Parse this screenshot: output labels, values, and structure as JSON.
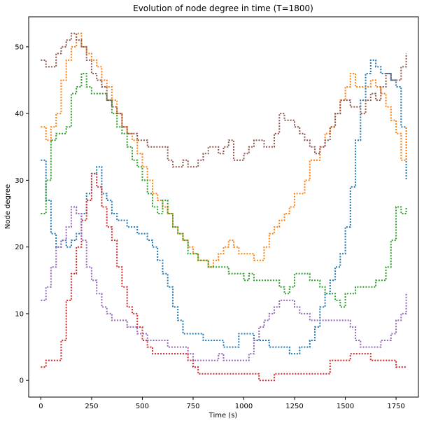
{
  "chart_data": {
    "type": "line",
    "title": "Evolution of node degree in time (T=1800)",
    "xlabel": "Time (s)",
    "ylabel": "Node degree",
    "xlim": [
      -60,
      1860
    ],
    "ylim": [
      -2.5,
      54.5
    ],
    "xticks": [
      0,
      250,
      500,
      750,
      1000,
      1250,
      1500,
      1750
    ],
    "yticks": [
      0,
      10,
      20,
      30,
      40,
      50
    ],
    "grid": false,
    "legend": "none",
    "series": [
      {
        "color": "#1f77b4",
        "x": [
          0,
          25,
          50,
          75,
          100,
          125,
          150,
          175,
          200,
          225,
          250,
          275,
          300,
          325,
          350,
          375,
          400,
          425,
          450,
          475,
          500,
          525,
          550,
          575,
          600,
          625,
          650,
          675,
          700,
          725,
          750,
          775,
          800,
          825,
          850,
          875,
          900,
          925,
          950,
          975,
          1000,
          1025,
          1050,
          1075,
          1100,
          1125,
          1150,
          1175,
          1200,
          1225,
          1250,
          1275,
          1300,
          1325,
          1350,
          1375,
          1400,
          1425,
          1450,
          1475,
          1500,
          1525,
          1550,
          1575,
          1600,
          1625,
          1650,
          1675,
          1700,
          1725,
          1750,
          1775,
          1800
        ],
        "y": [
          33,
          27,
          22,
          20,
          21,
          20,
          21,
          22,
          25,
          28,
          31,
          32,
          28,
          27,
          25,
          24,
          24,
          23,
          23,
          22,
          22,
          21,
          20,
          18,
          16,
          14,
          11,
          9,
          7,
          7,
          7,
          7,
          6,
          6,
          6,
          6,
          5,
          5,
          5,
          7,
          7,
          7,
          6,
          6,
          6,
          5,
          5,
          5,
          5,
          4,
          4,
          5,
          5,
          6,
          8,
          11,
          13,
          15,
          17,
          19,
          23,
          29,
          36,
          42,
          46,
          48,
          47,
          46,
          46,
          45,
          44,
          38,
          30
        ]
      },
      {
        "color": "#ff7f0e",
        "x": [
          0,
          25,
          50,
          75,
          100,
          125,
          150,
          175,
          200,
          225,
          250,
          275,
          300,
          325,
          350,
          375,
          400,
          425,
          450,
          475,
          500,
          525,
          550,
          575,
          600,
          625,
          650,
          675,
          700,
          725,
          750,
          775,
          800,
          825,
          850,
          875,
          900,
          925,
          950,
          975,
          1000,
          1025,
          1050,
          1075,
          1100,
          1125,
          1150,
          1175,
          1200,
          1225,
          1250,
          1275,
          1300,
          1325,
          1350,
          1375,
          1400,
          1425,
          1450,
          1475,
          1500,
          1525,
          1550,
          1575,
          1600,
          1625,
          1650,
          1675,
          1700,
          1725,
          1750,
          1775,
          1800
        ],
        "y": [
          38,
          36,
          38,
          40,
          45,
          48,
          50,
          52,
          50,
          49,
          48,
          47,
          45,
          44,
          42,
          40,
          38,
          37,
          36,
          34,
          32,
          30,
          28,
          27,
          26,
          25,
          23,
          22,
          21,
          20,
          19,
          18,
          18,
          17,
          18,
          19,
          20,
          21,
          20,
          19,
          19,
          19,
          18,
          18,
          20,
          22,
          23,
          24,
          25,
          26,
          28,
          28,
          30,
          33,
          33,
          35,
          37,
          38,
          40,
          42,
          44,
          46,
          44,
          44,
          44,
          45,
          44,
          43,
          41,
          39,
          37,
          33,
          38
        ]
      },
      {
        "color": "#2ca02c",
        "x": [
          0,
          25,
          50,
          75,
          100,
          125,
          150,
          175,
          200,
          225,
          250,
          275,
          300,
          325,
          350,
          375,
          400,
          425,
          450,
          475,
          500,
          525,
          550,
          575,
          600,
          625,
          650,
          675,
          700,
          725,
          750,
          775,
          800,
          825,
          850,
          875,
          900,
          925,
          950,
          975,
          1000,
          1025,
          1050,
          1075,
          1100,
          1125,
          1150,
          1175,
          1200,
          1225,
          1250,
          1275,
          1300,
          1325,
          1350,
          1375,
          1400,
          1425,
          1450,
          1475,
          1500,
          1525,
          1550,
          1575,
          1600,
          1625,
          1650,
          1675,
          1700,
          1725,
          1750,
          1775,
          1800
        ],
        "y": [
          25,
          30,
          36,
          37,
          37,
          38,
          43,
          44,
          46,
          44,
          43,
          43,
          43,
          42,
          40,
          38,
          37,
          35,
          33,
          32,
          30,
          28,
          26,
          25,
          27,
          25,
          23,
          22,
          21,
          19,
          19,
          18,
          18,
          17,
          17,
          17,
          17,
          16,
          16,
          16,
          15,
          16,
          15,
          15,
          15,
          15,
          15,
          14,
          13,
          14,
          16,
          16,
          16,
          15,
          15,
          14,
          13,
          13,
          12,
          11,
          13,
          13,
          14,
          14,
          14,
          14,
          15,
          15,
          17,
          21,
          26,
          25,
          26
        ]
      },
      {
        "color": "#d62728",
        "x": [
          0,
          25,
          50,
          75,
          100,
          125,
          150,
          175,
          200,
          225,
          250,
          275,
          300,
          325,
          350,
          375,
          400,
          425,
          450,
          475,
          500,
          525,
          550,
          575,
          600,
          625,
          650,
          675,
          700,
          725,
          750,
          775,
          800,
          825,
          850,
          875,
          900,
          925,
          950,
          975,
          1000,
          1025,
          1050,
          1075,
          1100,
          1125,
          1150,
          1175,
          1200,
          1225,
          1250,
          1275,
          1300,
          1325,
          1350,
          1375,
          1400,
          1425,
          1450,
          1475,
          1500,
          1525,
          1550,
          1575,
          1600,
          1625,
          1650,
          1675,
          1700,
          1725,
          1750,
          1775,
          1800
        ],
        "y": [
          2,
          3,
          3,
          3,
          6,
          12,
          16,
          20,
          24,
          27,
          31,
          29,
          26,
          23,
          21,
          17,
          14,
          11,
          10,
          8,
          6,
          5,
          4,
          4,
          4,
          4,
          4,
          4,
          4,
          3,
          2,
          1,
          1,
          1,
          1,
          1,
          1,
          1,
          1,
          1,
          1,
          1,
          1,
          0,
          0,
          0,
          1,
          1,
          1,
          1,
          1,
          1,
          1,
          1,
          1,
          1,
          1,
          3,
          3,
          3,
          3,
          4,
          4,
          4,
          4,
          3,
          3,
          3,
          3,
          3,
          2,
          2,
          2
        ]
      },
      {
        "color": "#9467bd",
        "x": [
          0,
          25,
          50,
          75,
          100,
          125,
          150,
          175,
          200,
          225,
          250,
          275,
          300,
          325,
          350,
          375,
          400,
          425,
          450,
          475,
          500,
          525,
          550,
          575,
          600,
          625,
          650,
          675,
          700,
          725,
          750,
          775,
          800,
          825,
          850,
          875,
          900,
          925,
          950,
          975,
          1000,
          1025,
          1050,
          1075,
          1100,
          1125,
          1150,
          1175,
          1200,
          1225,
          1250,
          1275,
          1300,
          1325,
          1350,
          1375,
          1400,
          1425,
          1450,
          1475,
          1500,
          1525,
          1550,
          1575,
          1600,
          1625,
          1650,
          1675,
          1700,
          1725,
          1750,
          1775,
          1800
        ],
        "y": [
          12,
          14,
          17,
          20,
          21,
          23,
          26,
          25,
          21,
          17,
          15,
          13,
          11,
          10,
          9,
          9,
          9,
          8,
          8,
          7,
          7,
          6,
          6,
          6,
          6,
          5,
          5,
          5,
          5,
          4,
          3,
          3,
          3,
          3,
          3,
          4,
          3,
          3,
          3,
          3,
          3,
          4,
          6,
          8,
          9,
          10,
          11,
          12,
          12,
          12,
          11,
          10,
          10,
          9,
          9,
          9,
          9,
          9,
          9,
          9,
          9,
          8,
          6,
          5,
          5,
          5,
          5,
          6,
          6,
          7,
          9,
          10,
          13
        ]
      },
      {
        "color": "#8c564b",
        "x": [
          0,
          25,
          50,
          75,
          100,
          125,
          150,
          175,
          200,
          225,
          250,
          275,
          300,
          325,
          350,
          375,
          400,
          425,
          450,
          475,
          500,
          525,
          550,
          575,
          600,
          625,
          650,
          675,
          700,
          725,
          750,
          775,
          800,
          825,
          850,
          875,
          900,
          925,
          950,
          975,
          1000,
          1025,
          1050,
          1075,
          1100,
          1125,
          1150,
          1175,
          1200,
          1225,
          1250,
          1275,
          1300,
          1325,
          1350,
          1375,
          1400,
          1425,
          1450,
          1475,
          1500,
          1525,
          1550,
          1575,
          1600,
          1625,
          1650,
          1675,
          1700,
          1725,
          1750,
          1775,
          1800
        ],
        "y": [
          48,
          47,
          47,
          49,
          50,
          51,
          52,
          51,
          50,
          48,
          46,
          45,
          44,
          42,
          41,
          40,
          38,
          37,
          37,
          36,
          36,
          35,
          35,
          35,
          35,
          33,
          32,
          32,
          33,
          32,
          32,
          33,
          34,
          35,
          35,
          34,
          35,
          36,
          33,
          33,
          34,
          35,
          36,
          36,
          35,
          35,
          37,
          40,
          39,
          39,
          38,
          37,
          36,
          35,
          34,
          35,
          36,
          38,
          40,
          42,
          42,
          41,
          41,
          40,
          42,
          43,
          42,
          44,
          46,
          45,
          45,
          47,
          49
        ]
      }
    ]
  }
}
